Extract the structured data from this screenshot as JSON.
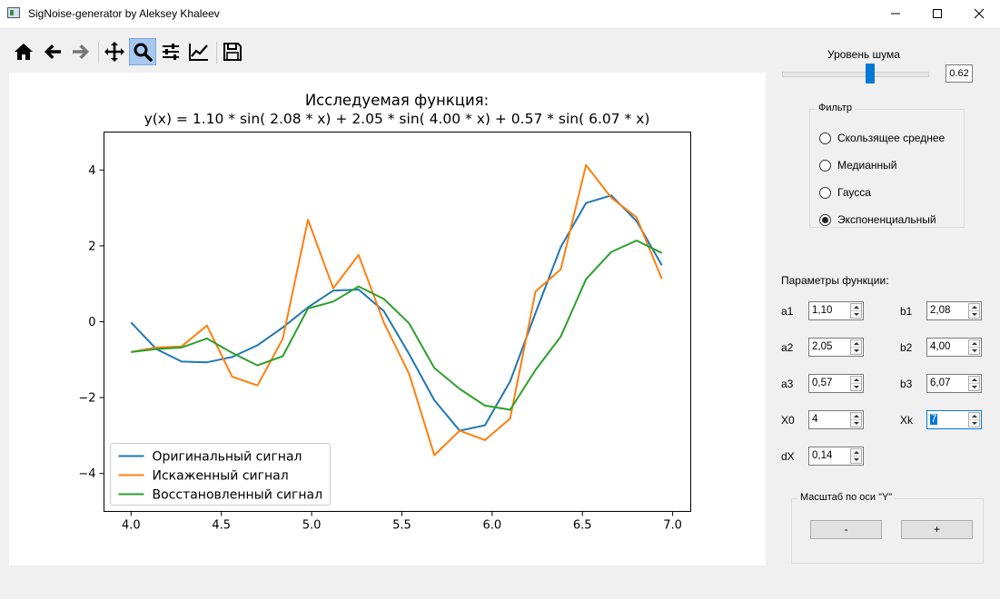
{
  "window": {
    "title": "SigNoise-generator by Aleksey Khaleev",
    "buttons": [
      "minimize",
      "maximize",
      "close"
    ]
  },
  "toolbar": {
    "items": [
      {
        "icon": "home-icon"
      },
      {
        "icon": "back-arrow-icon"
      },
      {
        "icon": "forward-arrow-icon"
      },
      {
        "icon": "pan-icon"
      },
      {
        "icon": "zoom-icon",
        "active": true
      },
      {
        "icon": "subplots-icon"
      },
      {
        "icon": "axes-edit-icon"
      },
      {
        "icon": "save-icon"
      }
    ]
  },
  "noise": {
    "label": "Уровень шума",
    "value": "0.62",
    "slider_fraction": 0.62
  },
  "filter": {
    "title": "Фильтр",
    "options": [
      {
        "label": "Скользящее среднее",
        "checked": false
      },
      {
        "label": "Медианный",
        "checked": false
      },
      {
        "label": "Гаусса",
        "checked": false
      },
      {
        "label": "Экспоненциальный",
        "checked": true
      }
    ]
  },
  "params": {
    "title": "Параметры функции:",
    "fields": [
      {
        "label": "a1",
        "value": "1,10"
      },
      {
        "label": "b1",
        "value": "2,08"
      },
      {
        "label": "a2",
        "value": "2,05"
      },
      {
        "label": "b2",
        "value": "4,00"
      },
      {
        "label": "a3",
        "value": "0,57"
      },
      {
        "label": "b3",
        "value": "6,07"
      },
      {
        "label": "X0",
        "value": "4"
      },
      {
        "label": "Xk",
        "value": "7",
        "focused": true
      },
      {
        "label": "dX",
        "value": "0,14"
      }
    ]
  },
  "y_scale": {
    "title": "Масштаб по оси \"Y\"",
    "minus_label": "-",
    "plus_label": "+"
  },
  "chart_data": {
    "type": "line",
    "title": "Исследуемая функция:",
    "subtitle": "y(x) =  1.10 * sin( 2.08 * x) +  2.05 * sin( 4.00 * x) +  0.57 * sin( 6.07 * x)",
    "xlabel": "",
    "ylabel": "",
    "xlim": [
      3.85,
      7.1
    ],
    "ylim": [
      -5,
      5
    ],
    "xticks": [
      "4.0",
      "4.5",
      "5.0",
      "5.5",
      "6.0",
      "6.5",
      "7.0"
    ],
    "xtick_values": [
      4.0,
      4.5,
      5.0,
      5.5,
      6.0,
      6.5,
      7.0
    ],
    "yticks": [
      "−4",
      "−2",
      "0",
      "2",
      "4"
    ],
    "ytick_values": [
      -4,
      -2,
      0,
      2,
      4
    ],
    "legend_position": "bottom-left",
    "x": [
      4.0,
      4.14,
      4.28,
      4.42,
      4.56,
      4.7,
      4.84,
      4.98,
      5.12,
      5.26,
      5.4,
      5.54,
      5.68,
      5.82,
      5.96,
      6.1,
      6.24,
      6.38,
      6.52,
      6.66,
      6.8,
      6.94
    ],
    "series": [
      {
        "name": "Оригинальный сигнал",
        "color": "#1f77b4",
        "values": [
          -0.02,
          -0.72,
          -1.05,
          -1.07,
          -0.93,
          -0.62,
          -0.15,
          0.38,
          0.82,
          0.85,
          0.28,
          -0.85,
          -2.07,
          -2.87,
          -2.73,
          -1.57,
          0.23,
          1.97,
          3.13,
          3.33,
          2.65,
          1.49
        ]
      },
      {
        "name": "Искаженный сигнал",
        "color": "#ff7f0e",
        "values": [
          -0.8,
          -0.68,
          -0.65,
          -0.1,
          -1.45,
          -1.68,
          -0.45,
          2.69,
          0.88,
          1.76,
          -0.02,
          -1.37,
          -3.52,
          -2.87,
          -3.12,
          -2.55,
          0.8,
          1.38,
          4.13,
          3.27,
          2.75,
          1.13
        ]
      },
      {
        "name": "Восстановленный сигнал",
        "color": "#2ca02c",
        "values": [
          -0.8,
          -0.72,
          -0.68,
          -0.44,
          -0.82,
          -1.15,
          -0.91,
          0.35,
          0.53,
          0.93,
          0.6,
          -0.04,
          -1.22,
          -1.77,
          -2.21,
          -2.32,
          -1.27,
          -0.39,
          1.12,
          1.84,
          2.14,
          1.81
        ]
      }
    ]
  }
}
